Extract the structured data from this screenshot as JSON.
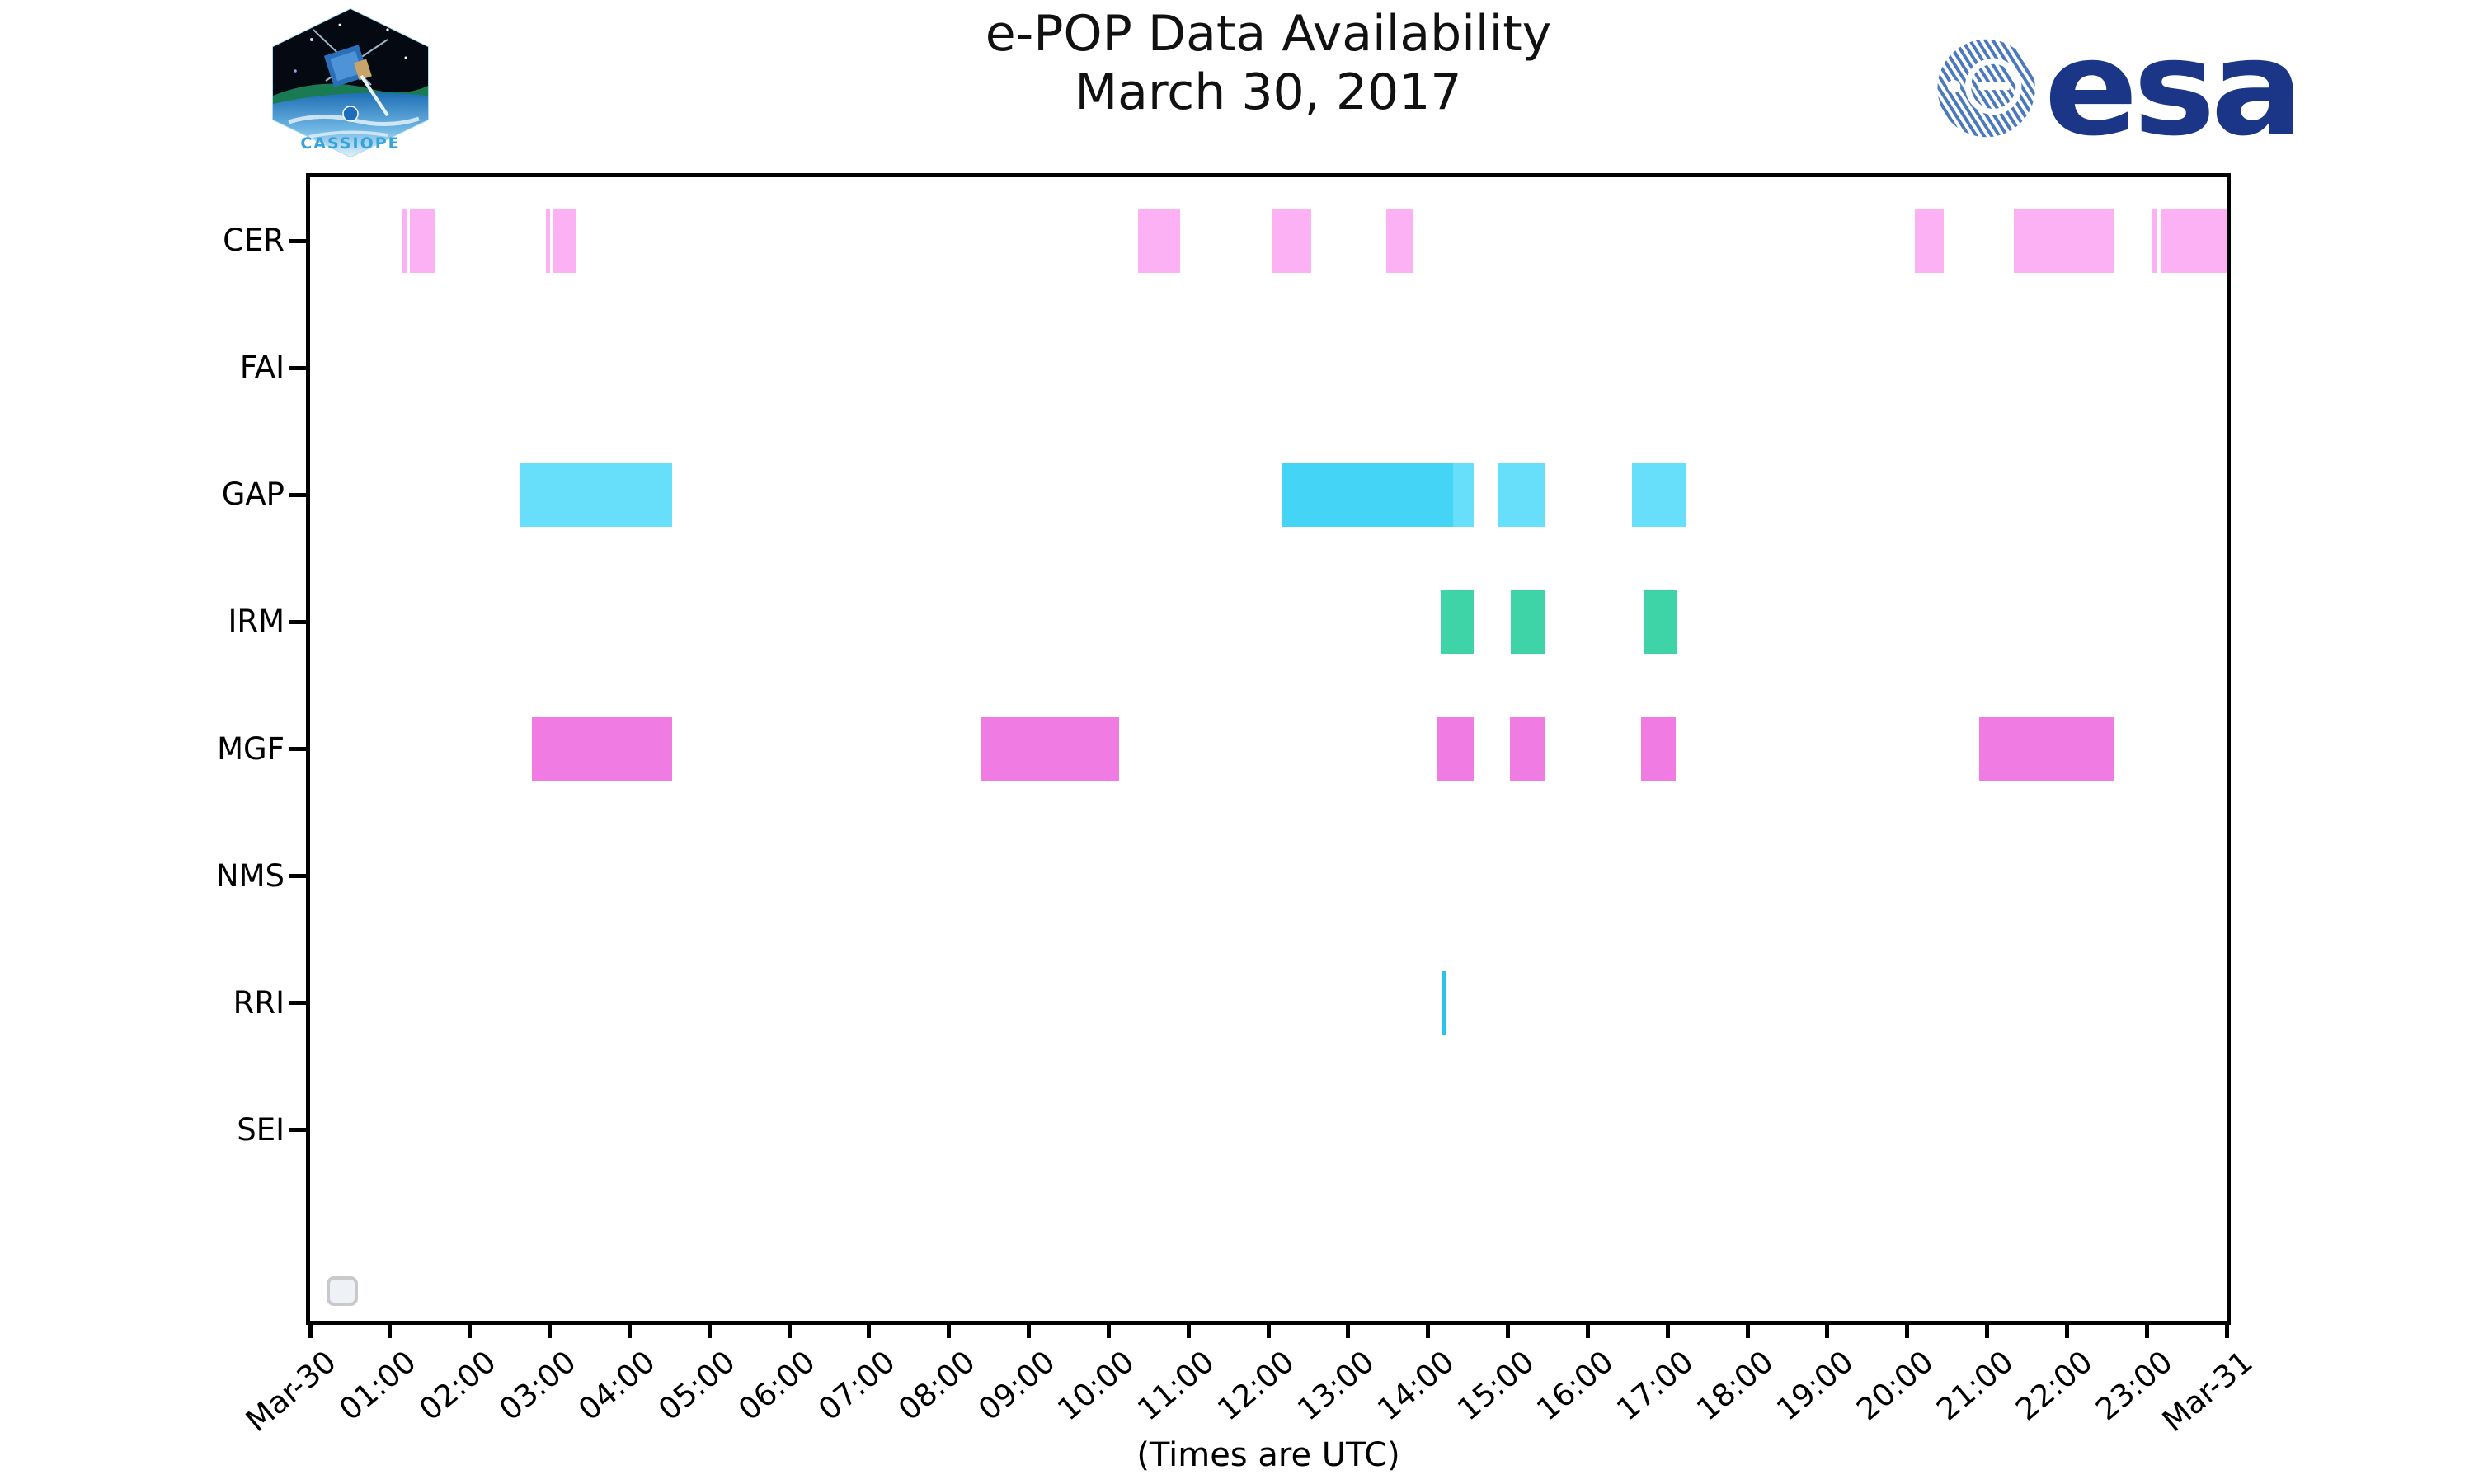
{
  "header": {
    "title_line1": "e-POP Data Availability",
    "title_line2": "March 30, 2017",
    "cassiope_patch_label": "CASSIOPE",
    "esa_wordmark": "esa"
  },
  "footer": {
    "xlabel": "(Times are UTC)"
  },
  "chart_data": {
    "type": "bar",
    "subtype": "availability-timeline",
    "title": "e-POP Data Availability",
    "subtitle": "March 30, 2017",
    "xlabel": "(Times are UTC)",
    "x_unit": "hours UTC on 2017-03-30",
    "xlim": [
      0,
      24
    ],
    "grid": false,
    "legend_position": "none",
    "x_tick_labels": [
      "Mar-30",
      "01:00",
      "02:00",
      "03:00",
      "04:00",
      "05:00",
      "06:00",
      "07:00",
      "08:00",
      "09:00",
      "10:00",
      "11:00",
      "12:00",
      "13:00",
      "14:00",
      "15:00",
      "16:00",
      "17:00",
      "18:00",
      "19:00",
      "20:00",
      "21:00",
      "22:00",
      "23:00",
      "Mar-31"
    ],
    "rows": [
      {
        "label": "CER",
        "color": "#fbb1f3",
        "intervals": [
          [
            1.16,
            1.22
          ],
          [
            1.25,
            1.57
          ],
          [
            2.95,
            3.01
          ],
          [
            3.04,
            3.33
          ],
          [
            10.37,
            10.9
          ],
          [
            12.05,
            12.54
          ],
          [
            13.48,
            13.81
          ],
          [
            20.1,
            20.46
          ],
          [
            21.34,
            22.6
          ],
          [
            23.06,
            23.12
          ],
          [
            23.17,
            24.0
          ]
        ]
      },
      {
        "label": "FAI",
        "color": null,
        "intervals": []
      },
      {
        "label": "GAP",
        "color": "#67defa",
        "intervals": [
          [
            2.63,
            4.53
          ],
          [
            12.18,
            14.31,
            "#44d4f5"
          ],
          [
            14.31,
            14.57
          ],
          [
            14.88,
            15.46
          ],
          [
            16.55,
            17.23
          ]
        ]
      },
      {
        "label": "IRM",
        "color": "#3fd3a8",
        "intervals": [
          [
            14.16,
            14.57
          ],
          [
            15.04,
            15.46
          ],
          [
            16.7,
            17.12
          ]
        ]
      },
      {
        "label": "MGF",
        "color": "#ef7be3",
        "intervals": [
          [
            2.78,
            4.53
          ],
          [
            8.41,
            10.13
          ],
          [
            14.12,
            14.57
          ],
          [
            15.03,
            15.46
          ],
          [
            16.67,
            17.1
          ],
          [
            20.9,
            22.59
          ]
        ]
      },
      {
        "label": "NMS",
        "color": null,
        "intervals": []
      },
      {
        "label": "RRI",
        "color": "#2ac4e8",
        "intervals": [
          [
            14.17,
            14.23
          ]
        ]
      },
      {
        "label": "SEI",
        "color": null,
        "intervals": []
      }
    ]
  }
}
